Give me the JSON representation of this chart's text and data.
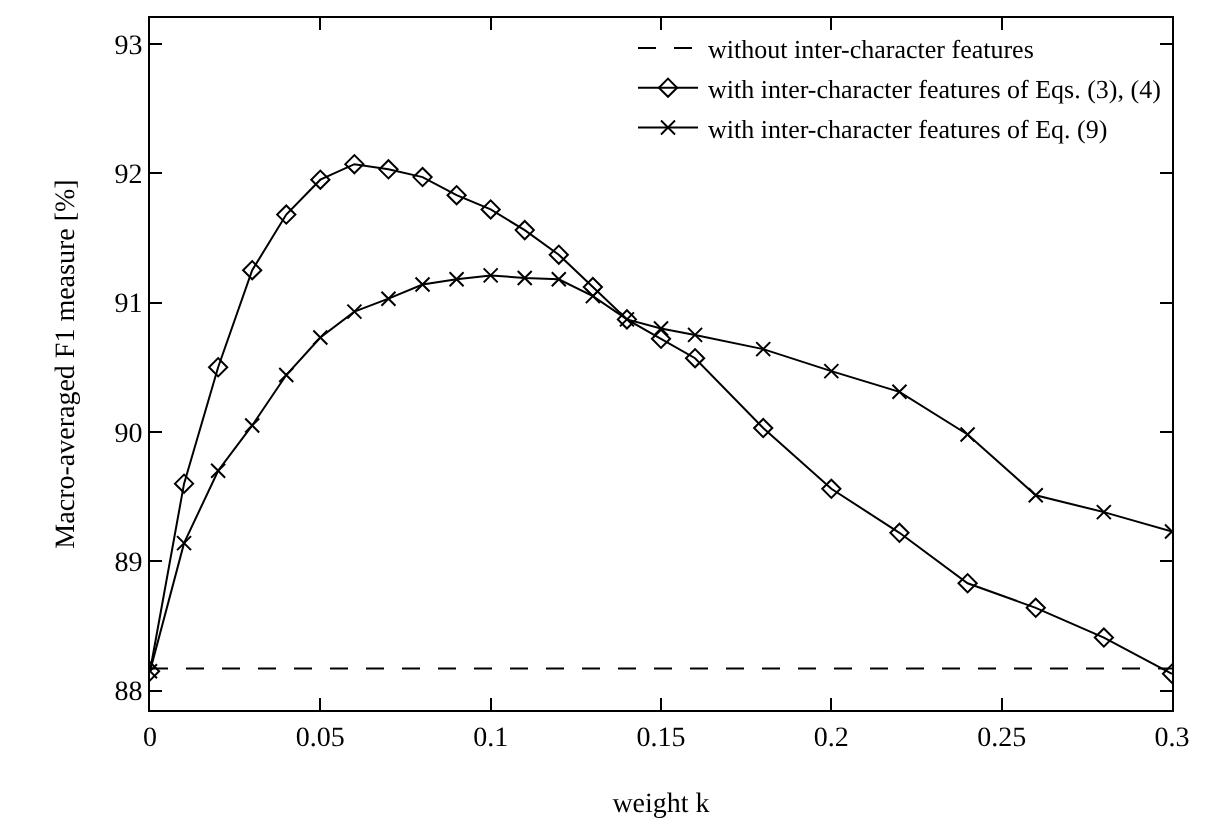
{
  "chart_data": {
    "type": "line",
    "xlabel": "weight k",
    "ylabel": "Macro-averaged F1 measure [%]",
    "x": [
      0,
      0.01,
      0.02,
      0.03,
      0.04,
      0.05,
      0.06,
      0.07,
      0.08,
      0.09,
      0.1,
      0.11,
      0.12,
      0.13,
      0.14,
      0.15,
      0.16,
      0.18,
      0.2,
      0.22,
      0.24,
      0.26,
      0.28,
      0.3
    ],
    "series": [
      {
        "name": "with inter-character features of Eqs. (3), (4)",
        "color": "#000000",
        "marker": "diamond",
        "values": [
          88.15,
          89.6,
          90.5,
          91.25,
          91.68,
          91.95,
          92.07,
          92.03,
          91.97,
          91.83,
          91.72,
          91.56,
          91.37,
          91.12,
          90.87,
          90.72,
          90.57,
          90.03,
          89.56,
          89.22,
          88.83,
          88.64,
          88.41,
          88.13
        ]
      },
      {
        "name": "with inter-character features of Eq. (9)",
        "color": "#000000",
        "marker": "cross",
        "values": [
          88.15,
          89.14,
          89.7,
          90.05,
          90.44,
          90.73,
          90.93,
          91.03,
          91.14,
          91.18,
          91.21,
          91.19,
          91.18,
          91.05,
          90.87,
          90.8,
          90.75,
          90.64,
          90.47,
          90.31,
          89.98,
          89.51,
          89.38,
          89.23
        ]
      }
    ],
    "ref_lines": [
      {
        "axis": "y",
        "value": 88.17,
        "label": "without inter-character features",
        "color": "#000000",
        "line_style": "dashed"
      }
    ],
    "xlim": [
      0,
      0.3
    ],
    "xticks": [
      0,
      0.05,
      0.1,
      0.15,
      0.2,
      0.25,
      0.3
    ],
    "ylim": [
      87.85,
      93.2
    ],
    "yticks": [
      88,
      89,
      90,
      91,
      92,
      93
    ],
    "grid": false,
    "legend": "top right",
    "line_style": "solid"
  }
}
